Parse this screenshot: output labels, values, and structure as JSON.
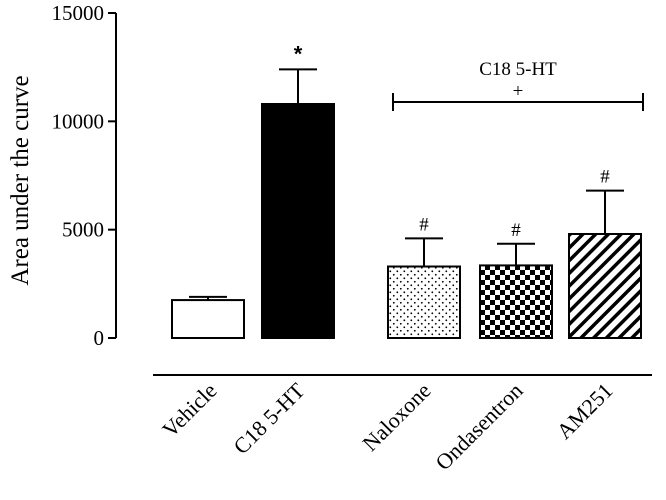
{
  "chart_data": {
    "type": "bar",
    "title": "",
    "xlabel": "",
    "ylabel": "Area under the curve",
    "ylim": [
      0,
      15000
    ],
    "yticks": [
      0,
      5000,
      10000,
      15000
    ],
    "categories": [
      "Vehicle",
      "C18 5-HT",
      "Naloxone",
      "Ondasentron",
      "AM251"
    ],
    "values": [
      1750,
      10800,
      3300,
      3350,
      4800
    ],
    "errors": [
      150,
      1600,
      1300,
      1000,
      2000
    ],
    "fills": [
      "white",
      "black",
      "dots",
      "checker",
      "diagonal-stripes"
    ],
    "significance": [
      "",
      "*",
      "#",
      "#",
      "#"
    ],
    "bracket": {
      "label": "C18 5-HT",
      "symbol": "+",
      "spans": [
        "Naloxone",
        "AM251"
      ]
    },
    "grid": false,
    "legend": "none"
  }
}
